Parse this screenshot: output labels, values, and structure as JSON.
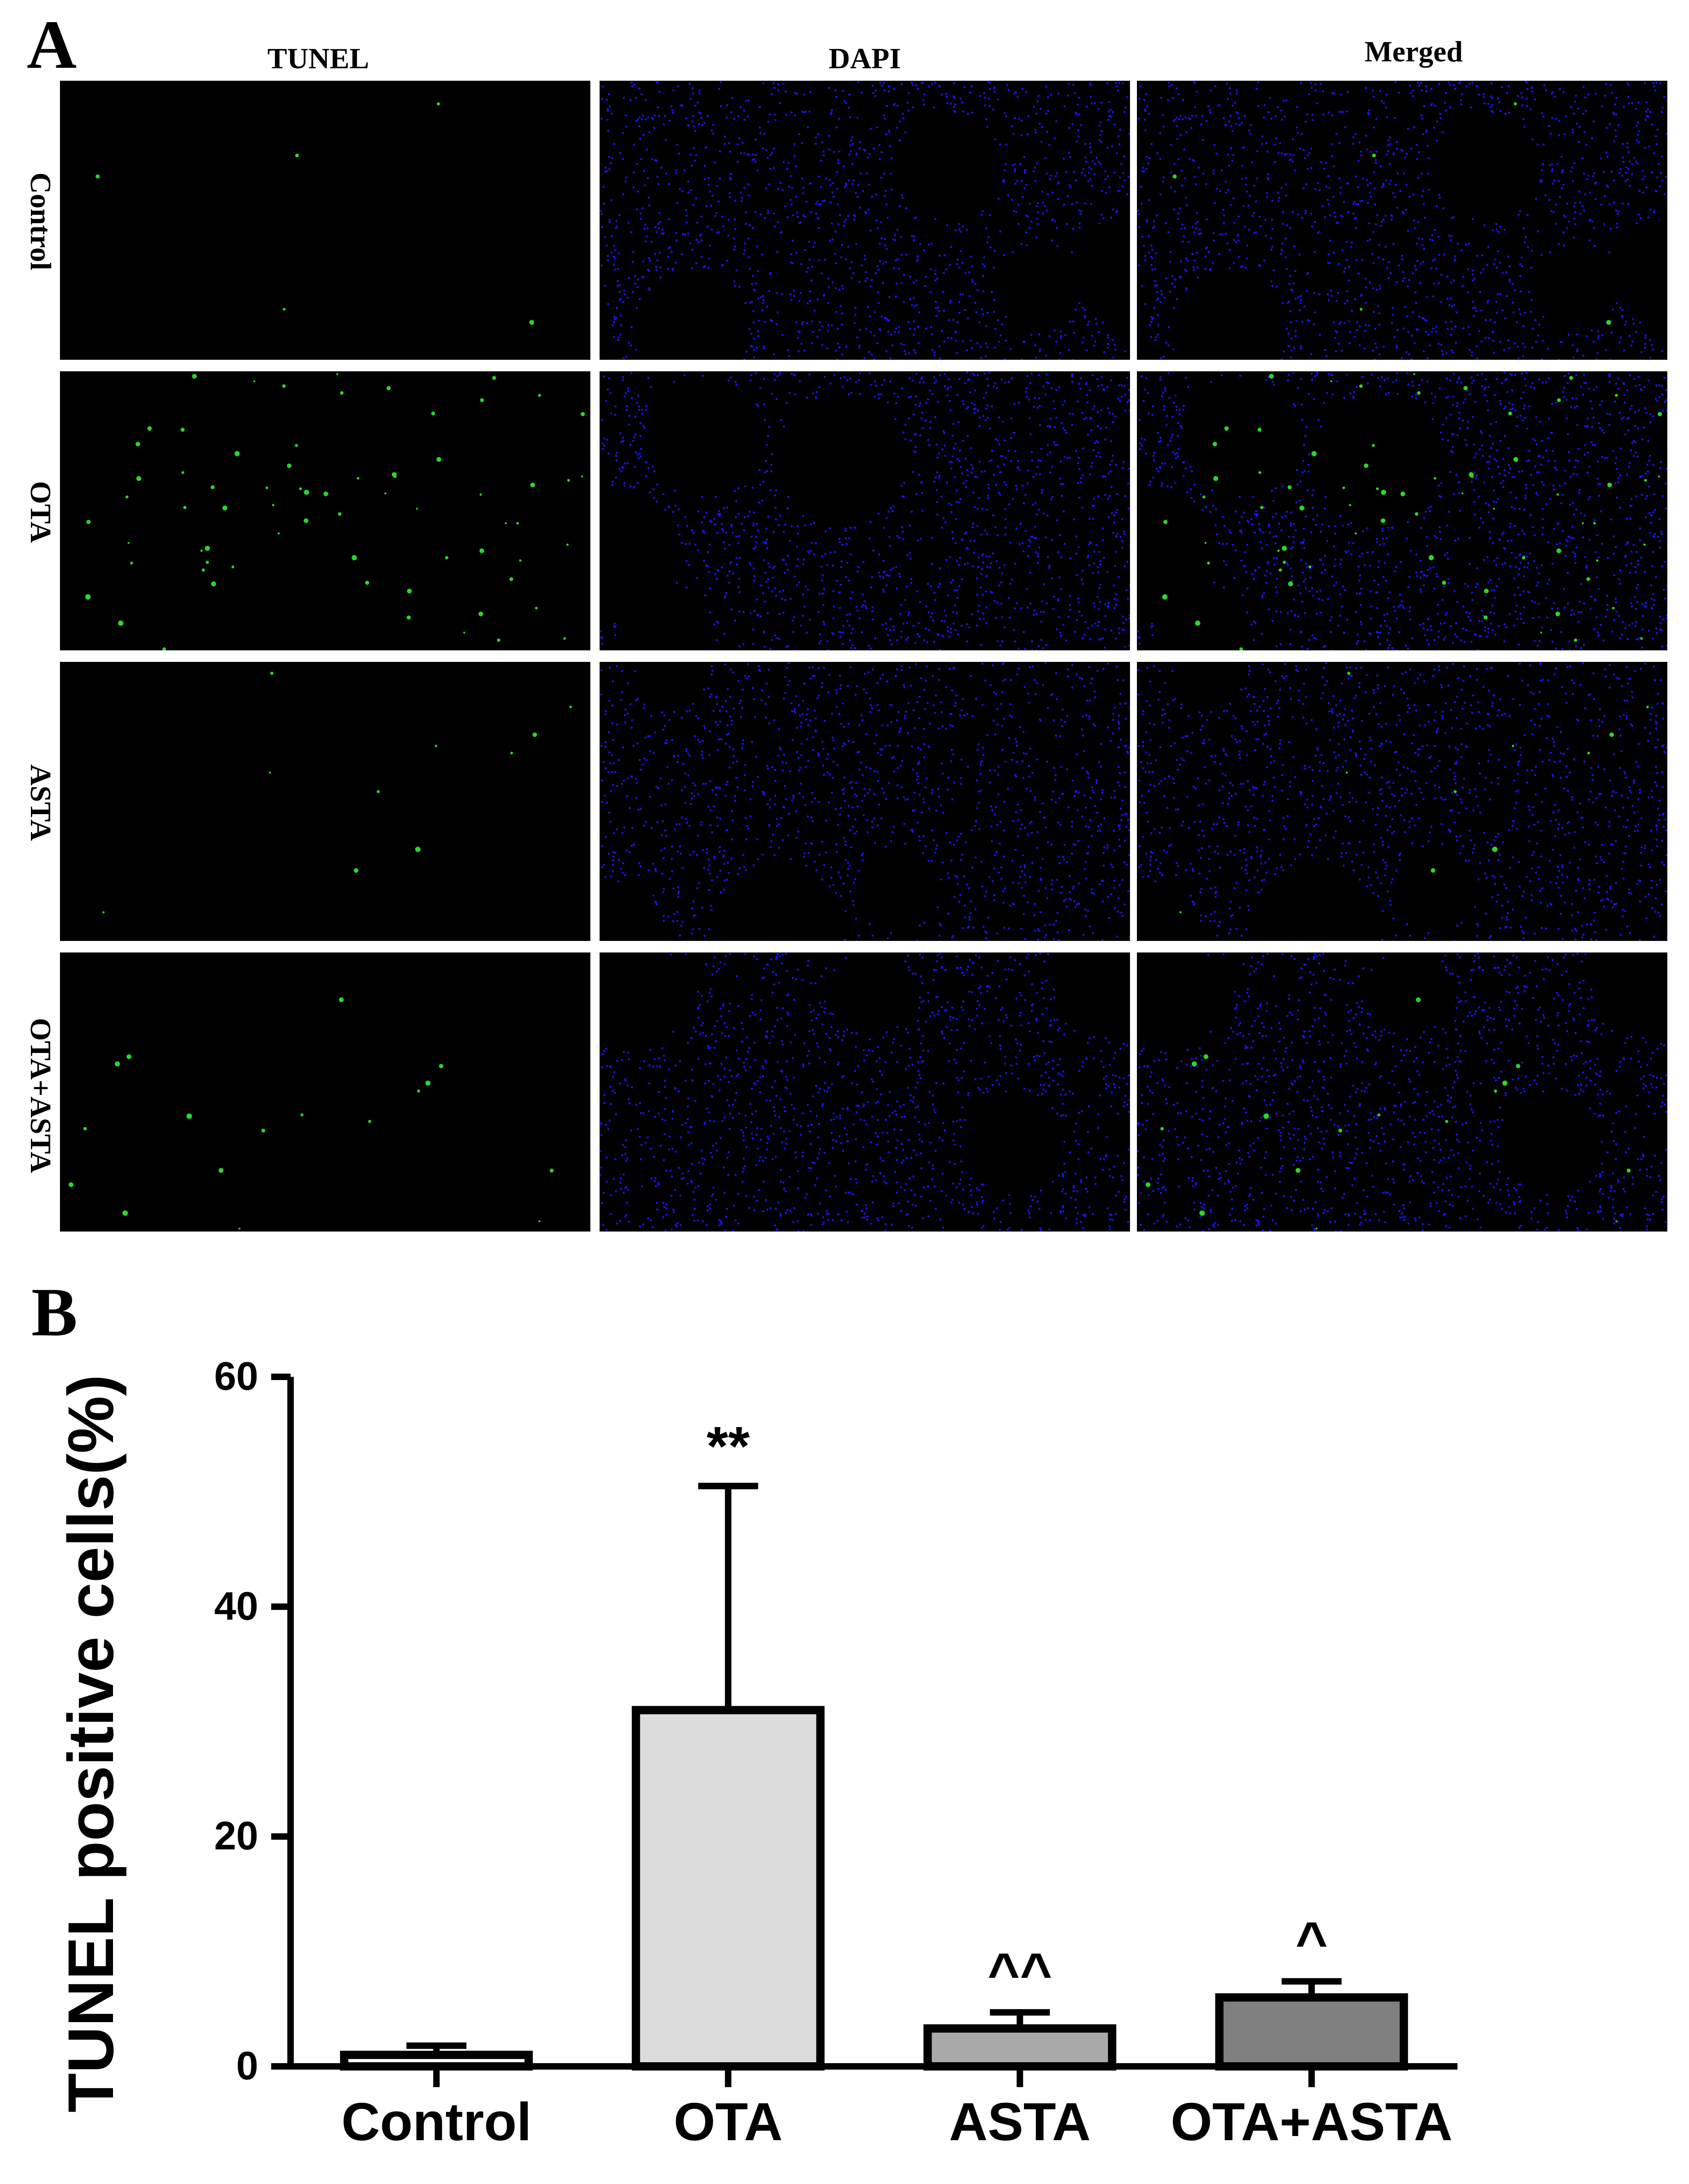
{
  "panel_a": {
    "label": "A",
    "columns": [
      "TUNEL",
      "DAPI",
      "Merged"
    ],
    "rows": [
      "Control",
      "OTA",
      "ASTA",
      "OTA+ASTA"
    ],
    "tunel_density": [
      0.02,
      0.55,
      0.06,
      0.12
    ],
    "colors": {
      "tunel": "#2bd62b",
      "dapi": "#1616ff",
      "background": "#000000"
    }
  },
  "panel_b": {
    "label": "B"
  },
  "chart_data": {
    "type": "bar",
    "title": "",
    "categories": [
      "Control",
      "OTA",
      "ASTA",
      "OTA+ASTA"
    ],
    "values": [
      1.0,
      31.0,
      3.3,
      6.0
    ],
    "errors": [
      0.8,
      19.5,
      1.4,
      1.4
    ],
    "significance": [
      "",
      "**",
      "^^",
      "^"
    ],
    "ylabel": "TUNEL positive cells(%)",
    "ylim": [
      0,
      60
    ],
    "yticks": [
      0,
      20,
      40,
      60
    ],
    "ytick_labels": [
      "0",
      "20",
      "40",
      "60"
    ],
    "bar_colors": [
      "#ffffff",
      "#dcdcdc",
      "#a9a9a9",
      "#808080"
    ],
    "grid": false,
    "legend": "none"
  }
}
